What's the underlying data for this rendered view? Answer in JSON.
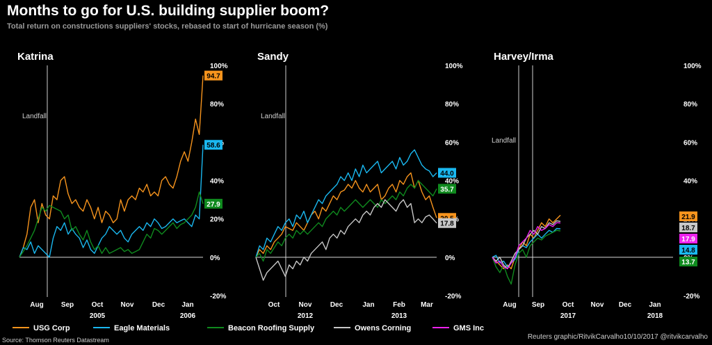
{
  "header": {
    "title": "Months to go for U.S. building supplier boom?",
    "subtitle": "Total return on constructions suppliers' stocks, rebased to start of hurricane season (%)"
  },
  "legend": [
    {
      "name": "USG Corp",
      "color": "#f7941d"
    },
    {
      "name": "Eagle Materials",
      "color": "#1ab8f0"
    },
    {
      "name": "Beacon Roofing Supply",
      "color": "#0f8a1e"
    },
    {
      "name": "Owens Corning",
      "color": "#c8c8c8"
    },
    {
      "name": "GMS Inc",
      "color": "#ee22ee"
    }
  ],
  "footer": {
    "source": "Source: Thomson Reuters Datastream",
    "credit": "Reuters graphic/RitvikCarvalho10/10/2017  @ritvikcarvalho"
  },
  "chart_data": [
    {
      "type": "line",
      "title": "Katrina",
      "annotation": "Landfall",
      "ylim": [
        -20,
        100
      ],
      "yticks": [
        "100%",
        "80%",
        "60%",
        "40%",
        "20%",
        "0%",
        "-20%"
      ],
      "xticks": [
        "Aug",
        "Sep",
        "Oct",
        "Nov",
        "Dec",
        "Jan"
      ],
      "years": [
        "2005",
        "2006"
      ],
      "series": [
        {
          "name": "USG Corp",
          "color": "#f7941d",
          "end_label": "94.7",
          "values": [
            0,
            5,
            12,
            26,
            30,
            18,
            28,
            22,
            20,
            32,
            30,
            40,
            42,
            33,
            28,
            30,
            26,
            24,
            30,
            26,
            20,
            26,
            18,
            24,
            22,
            18,
            20,
            30,
            24,
            30,
            32,
            30,
            36,
            34,
            38,
            32,
            34,
            32,
            40,
            42,
            38,
            36,
            42,
            50,
            55,
            50,
            60,
            72,
            64,
            94.7
          ]
        },
        {
          "name": "Eagle Materials",
          "color": "#1ab8f0",
          "end_label": "58.6",
          "values": [
            0,
            5,
            4,
            8,
            2,
            6,
            4,
            2,
            0,
            10,
            16,
            14,
            18,
            12,
            15,
            12,
            10,
            5,
            9,
            4,
            2,
            6,
            10,
            12,
            16,
            14,
            12,
            14,
            10,
            8,
            12,
            14,
            16,
            14,
            18,
            16,
            20,
            18,
            15,
            16,
            18,
            20,
            18,
            19,
            20,
            18,
            16,
            22,
            20,
            58.6
          ]
        },
        {
          "name": "Beacon Roofing Supply",
          "color": "#0f8a1e",
          "end_label": "27.9",
          "values": [
            0,
            3,
            6,
            10,
            14,
            20,
            26,
            24,
            27,
            26,
            25,
            24,
            20,
            22,
            14,
            16,
            12,
            9,
            14,
            8,
            4,
            6,
            2,
            5,
            2,
            3,
            4,
            5,
            3,
            4,
            2,
            3,
            4,
            8,
            12,
            10,
            15,
            14,
            12,
            14,
            16,
            18,
            15,
            17,
            18,
            20,
            22,
            26,
            34,
            27.9
          ]
        }
      ]
    },
    {
      "type": "line",
      "title": "Sandy",
      "annotation": "Landfall",
      "ylim": [
        -20,
        100
      ],
      "yticks": [
        "100%",
        "80%",
        "60%",
        "40%",
        "20%",
        "0%",
        "-20%"
      ],
      "xticks": [
        "Oct",
        "Nov",
        "Dec",
        "Jan",
        "Feb",
        "Mar"
      ],
      "years": [
        "2012",
        "2013"
      ],
      "series": [
        {
          "name": "USG Corp",
          "color": "#f7941d",
          "end_label": "20.5",
          "values": [
            0,
            4,
            2,
            6,
            4,
            8,
            10,
            12,
            16,
            15,
            14,
            18,
            16,
            14,
            18,
            22,
            24,
            20,
            26,
            24,
            28,
            32,
            30,
            34,
            35,
            38,
            36,
            40,
            36,
            34,
            38,
            34,
            36,
            38,
            30,
            32,
            36,
            38,
            34,
            40,
            38,
            42,
            44,
            36,
            40,
            34,
            30,
            32,
            26,
            20.5
          ]
        },
        {
          "name": "Eagle Materials",
          "color": "#1ab8f0",
          "end_label": "44.0",
          "values": [
            0,
            6,
            4,
            10,
            8,
            12,
            16,
            14,
            18,
            20,
            16,
            22,
            20,
            24,
            18,
            22,
            26,
            30,
            28,
            32,
            34,
            36,
            38,
            42,
            40,
            44,
            40,
            46,
            42,
            48,
            44,
            46,
            48,
            50,
            44,
            46,
            48,
            50,
            46,
            52,
            48,
            50,
            54,
            56,
            52,
            48,
            46,
            45,
            42,
            44.0
          ]
        },
        {
          "name": "Beacon Roofing Supply",
          "color": "#0f8a1e",
          "end_label": "35.7",
          "values": [
            0,
            2,
            -2,
            4,
            2,
            5,
            8,
            6,
            10,
            12,
            10,
            14,
            12,
            14,
            12,
            14,
            16,
            18,
            16,
            20,
            22,
            24,
            22,
            26,
            24,
            26,
            28,
            30,
            28,
            26,
            28,
            30,
            28,
            26,
            30,
            28,
            30,
            32,
            30,
            34,
            32,
            36,
            38,
            36,
            40,
            38,
            36,
            34,
            32,
            35.7
          ]
        },
        {
          "name": "Owens Corning",
          "color": "#c8c8c8",
          "end_label": "17.8",
          "values": [
            0,
            -6,
            -12,
            -8,
            -6,
            -4,
            -2,
            -6,
            -10,
            -4,
            -6,
            -2,
            -4,
            0,
            -2,
            2,
            4,
            6,
            8,
            4,
            10,
            12,
            10,
            14,
            12,
            16,
            18,
            20,
            18,
            22,
            24,
            22,
            26,
            28,
            26,
            30,
            28,
            26,
            24,
            28,
            30,
            26,
            28,
            18,
            20,
            18,
            21,
            22,
            20,
            17.8
          ]
        }
      ]
    },
    {
      "type": "line",
      "title": "Harvey/Irma",
      "annotation": "Landfall",
      "ylim": [
        -20,
        100
      ],
      "yticks": [
        "100%",
        "80%",
        "60%",
        "40%",
        "20%",
        "0%",
        "-20%"
      ],
      "xticks": [
        "Aug",
        "Sep",
        "Oct",
        "Nov",
        "Dec",
        "Jan"
      ],
      "years": [
        "2017",
        "2018"
      ],
      "series": [
        {
          "name": "USG Corp",
          "color": "#f7941d",
          "end_label": "21.9",
          "values": [
            0,
            -2,
            -4,
            -6,
            -4,
            -6,
            0,
            4,
            8,
            6,
            12,
            10,
            14,
            18,
            16,
            20,
            18,
            20,
            21.9
          ]
        },
        {
          "name": "Eagle Materials",
          "color": "#1ab8f0",
          "end_label": "14.8",
          "values": [
            0,
            1,
            -3,
            -2,
            -5,
            -3,
            -1,
            4,
            6,
            5,
            8,
            10,
            12,
            10,
            12,
            14,
            13,
            15,
            14.8
          ]
        },
        {
          "name": "Beacon Roofing Supply",
          "color": "#0f8a1e",
          "end_label": "13.7",
          "values": [
            0,
            -5,
            -8,
            -4,
            -10,
            -14,
            -4,
            2,
            4,
            0,
            6,
            8,
            10,
            9,
            11,
            12,
            13,
            14,
            13.7
          ]
        },
        {
          "name": "Owens Corning",
          "color": "#c8c8c8",
          "end_label": "18.7",
          "values": [
            0,
            -2,
            0,
            -4,
            -6,
            -2,
            2,
            4,
            6,
            10,
            12,
            14,
            12,
            16,
            15,
            18,
            17,
            19,
            18.7
          ]
        },
        {
          "name": "GMS Inc",
          "color": "#ee22ee",
          "end_label": "17.9",
          "values": [
            0,
            -3,
            -2,
            -5,
            -6,
            -3,
            0,
            6,
            8,
            10,
            14,
            12,
            16,
            14,
            15,
            17,
            16,
            18,
            17.9
          ]
        }
      ]
    }
  ]
}
